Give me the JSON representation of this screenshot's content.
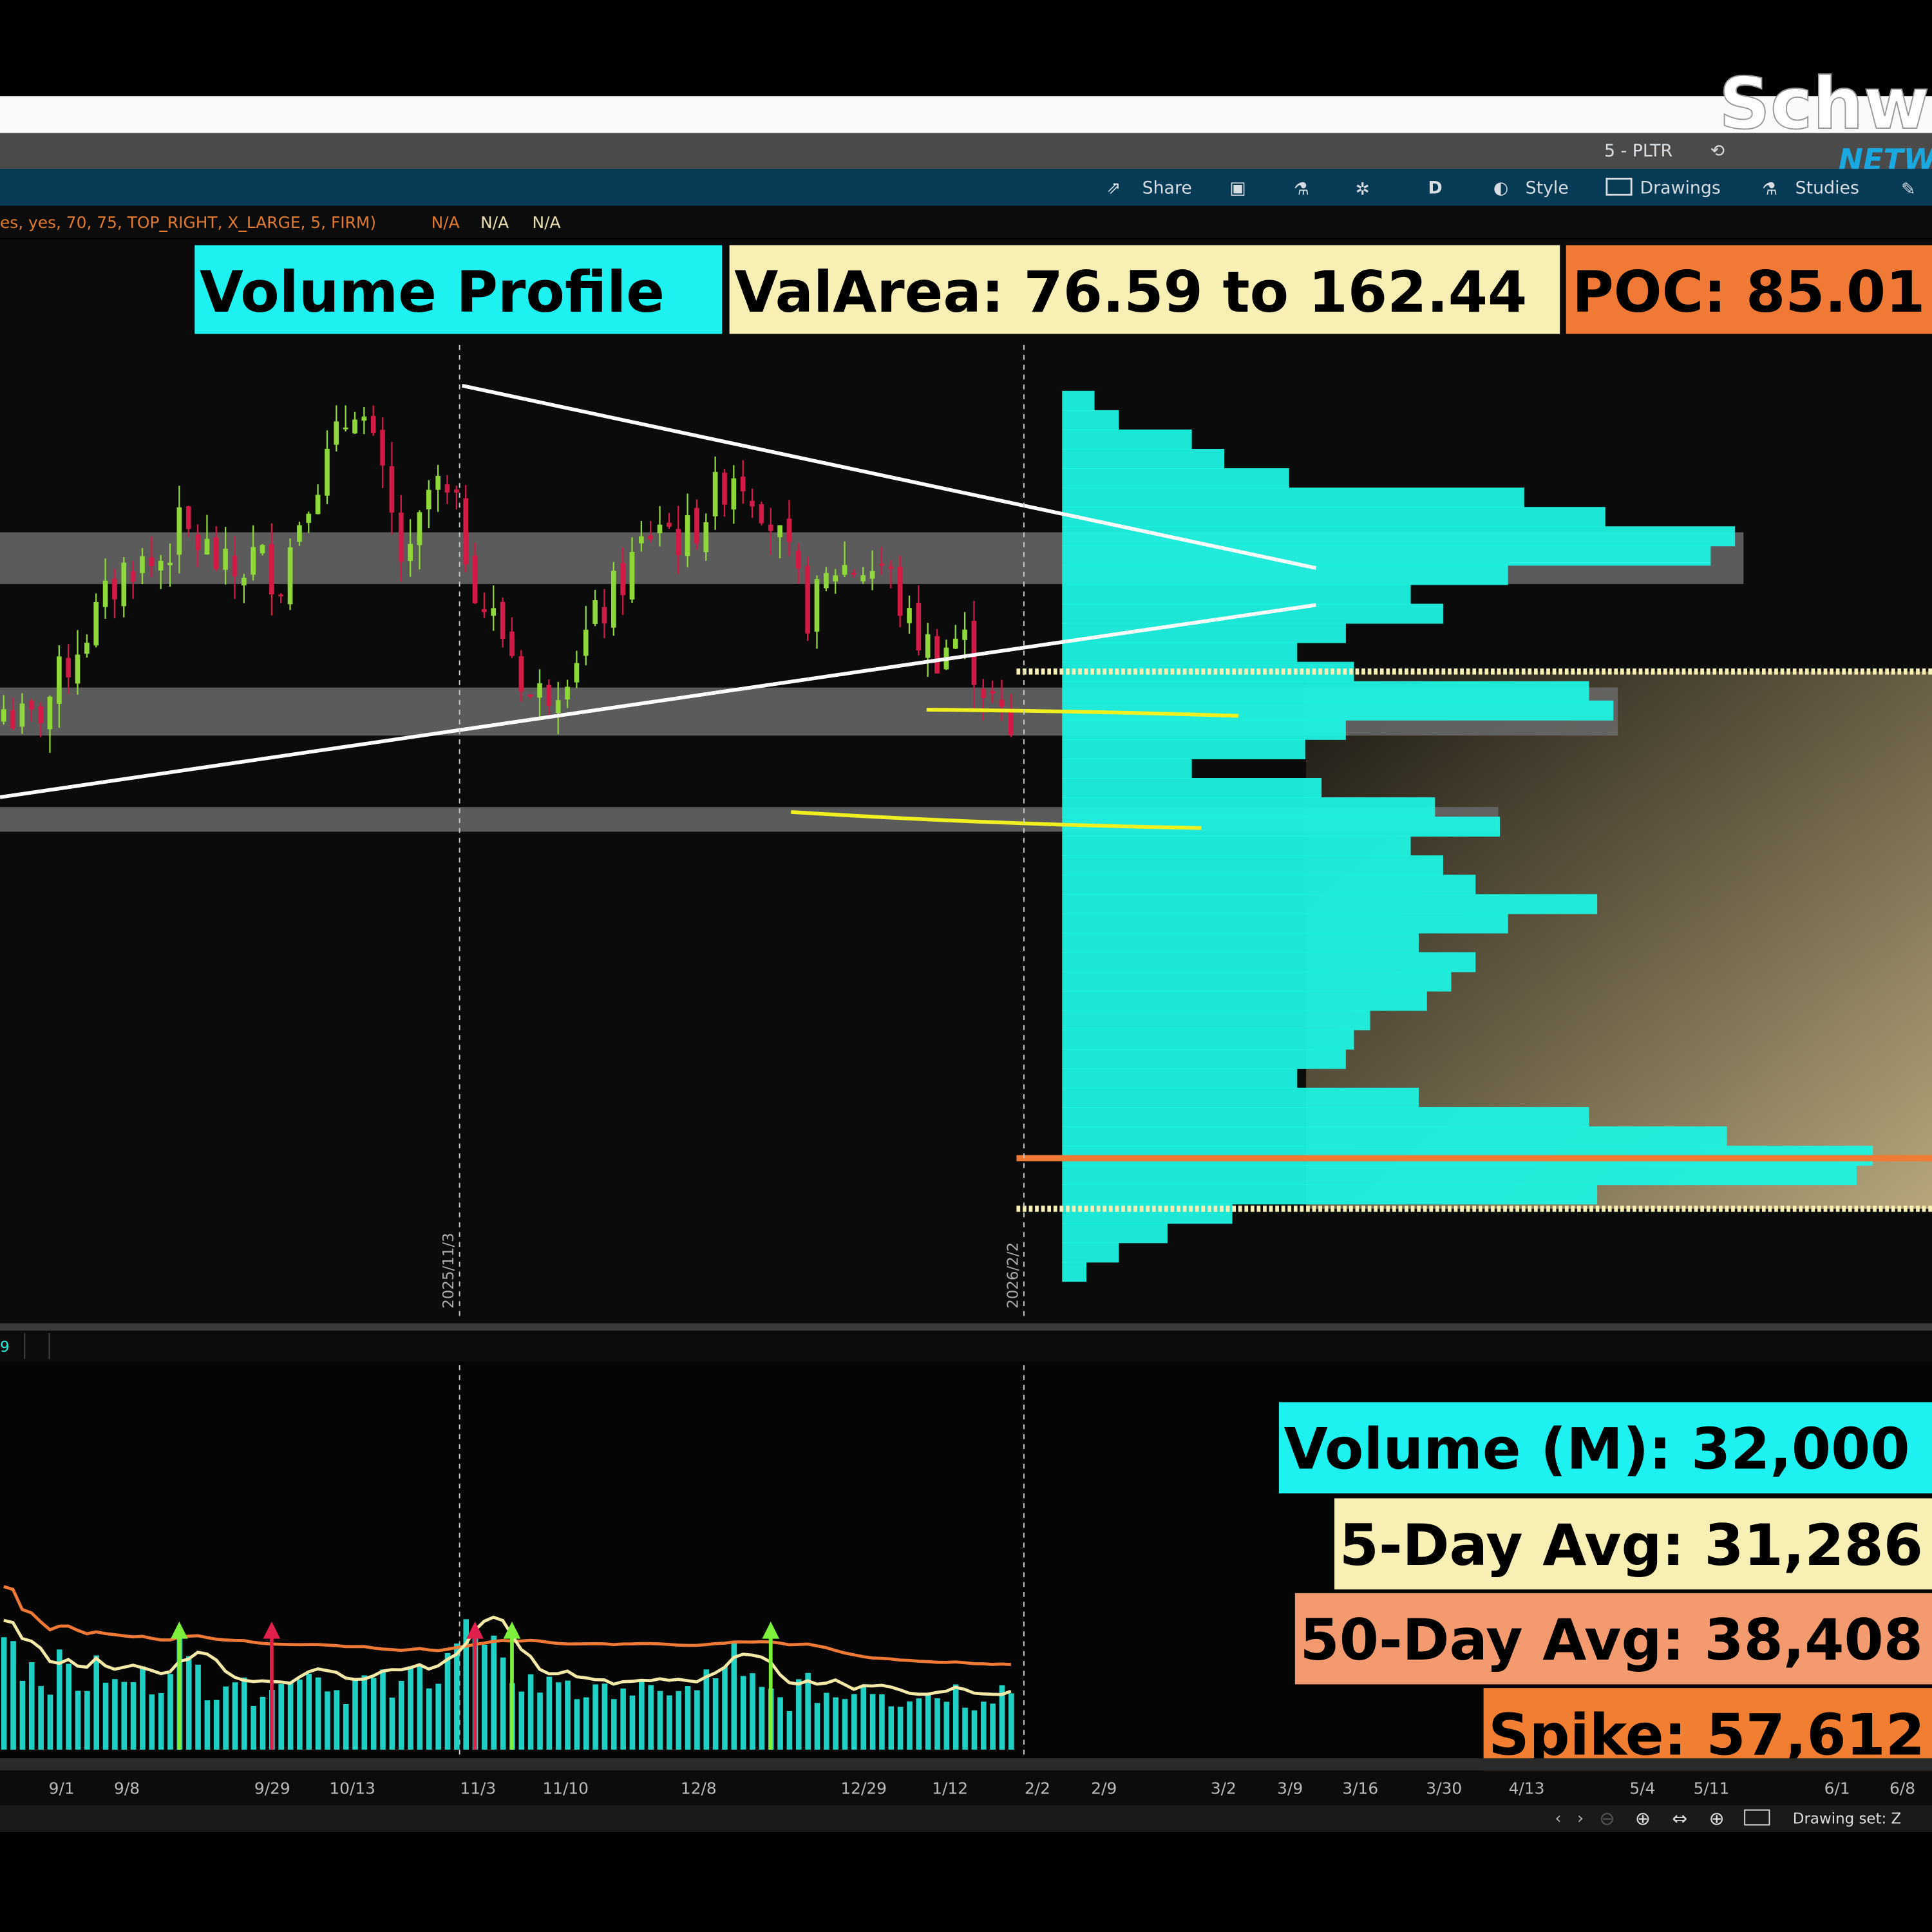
{
  "logo": {
    "text_main": "Schw",
    "text_sub": "NETW"
  },
  "window": {
    "symbol_tab": "5 - PLTR"
  },
  "toolbar": {
    "share_label": "Share",
    "period_label": "D",
    "style_label": "Style",
    "drawings_label": "Drawings",
    "studies_label": "Studies",
    "icons": [
      "share-icon",
      "screenshot-icon",
      "flask-icon",
      "gear-icon",
      "style-icon",
      "drawings-icon",
      "studies-icon",
      "edit-icon"
    ]
  },
  "study_line": {
    "params": "es, yes, 70, 75, TOP_RIGHT, X_LARGE, 5, FIRM)",
    "values": [
      "N/A",
      "N/A",
      "N/A"
    ]
  },
  "labels": {
    "volume_profile": "Volume Profile",
    "val_area": "ValArea: 76.59 to 162.44",
    "poc": "POC: 85.01",
    "volume": "Volume (M): 32,000",
    "avg5": "5-Day Avg: 31,286",
    "avg50": "50-Day Avg: 38,408",
    "spike": "Spike: 57,612"
  },
  "colors": {
    "cyan": "#1ef2e0",
    "val_area_bg": "#f7efb3",
    "poc_bg": "#f07a35",
    "avg50_bg": "#f49a6f",
    "spike_bg": "#f27f31",
    "up": "#8ed83a",
    "down": "#d11a45"
  },
  "events": [
    {
      "label": "2025/11/3"
    },
    {
      "label": "2026/2/2"
    }
  ],
  "subpanel": {
    "tab": "9"
  },
  "x_axis": [
    "9/1",
    "9/8",
    "9/29",
    "10/13",
    "11/3",
    "11/10",
    "12/8",
    "12/29",
    "1/12",
    "2/2",
    "2/9",
    "3/2",
    "3/9",
    "3/16",
    "3/30",
    "4/13",
    "5/4",
    "5/11",
    "6/1",
    "6/8"
  ],
  "status_bar": {
    "drawing_set": "Drawing set: Z"
  },
  "price": {
    "value_area_high": 162.44,
    "value_area_low": 76.59,
    "poc": 85.01,
    "closes": [
      156.5,
      153.5,
      159.5,
      167.4,
      173.3,
      180.2,
      179.2,
      185.1,
      182.1,
      177.2,
      181.1,
      177.2,
      191.0,
      196.9,
      206.7,
      192.9,
      177.2,
      192.9,
      187.0,
      173.3,
      167.4,
      157.5,
      161.5,
      167.4,
      173.3,
      180.2,
      187.0,
      183.1,
      189.0,
      194.9,
      191.0,
      181.1,
      171.3,
      179.2,
      179.2,
      179.2,
      169.3,
      165.4,
      168.3,
      159.5,
      151.6
    ]
  },
  "volume_profile": {
    "price_high": 207.3,
    "price_low": 65.0,
    "relative_volume_pct": [
      4,
      7,
      16,
      20,
      28,
      57,
      67,
      83,
      80,
      55,
      43,
      47,
      35,
      29,
      36,
      65,
      68,
      35,
      30,
      16,
      32,
      46,
      54,
      43,
      47,
      51,
      66,
      55,
      44,
      51,
      48,
      45,
      38,
      36,
      35,
      29,
      44,
      65,
      82,
      100,
      98,
      66,
      21,
      13,
      7,
      3
    ]
  },
  "volume": {
    "values": [
      60000,
      45000,
      38000,
      42000,
      35000,
      40000,
      33000,
      37000,
      36000,
      52000,
      41000,
      34000,
      39000,
      30000,
      36000,
      33000,
      45000,
      38000,
      31000,
      35000,
      34000,
      30000,
      40000,
      42000,
      55000,
      60000,
      48000,
      40000,
      36000,
      33000,
      38000,
      30000,
      28000,
      35000,
      31000,
      27000,
      33000,
      30000,
      36000,
      48000,
      34000,
      29000,
      26000,
      32000,
      30000,
      28000,
      35000,
      33000,
      27000,
      30000,
      29000,
      31000,
      26000,
      30000,
      32000
    ],
    "spike_markers": [
      {
        "bar": 19,
        "dir": "up"
      },
      {
        "bar": 29,
        "dir": "down"
      },
      {
        "bar": 51,
        "dir": "down"
      },
      {
        "bar": 55,
        "dir": "up"
      },
      {
        "bar": 83,
        "dir": "up"
      }
    ]
  }
}
